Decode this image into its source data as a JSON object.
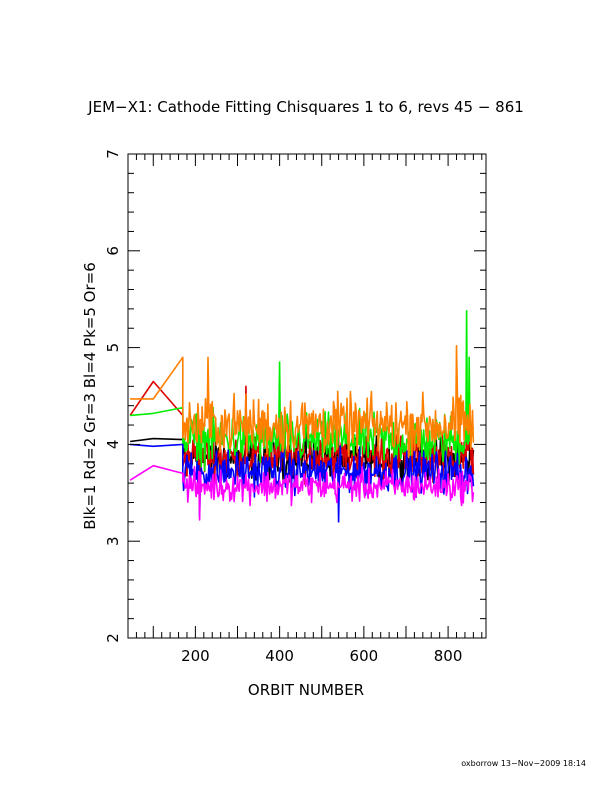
{
  "chart_data": {
    "type": "line",
    "title": "JEM−X1: Cathode Fitting Chisquares 1 to 6, revs 45 − 861",
    "xlabel": "ORBIT NUMBER",
    "ylabel": "Blk=1  Rd=2  Gr=3  Bl=4  Pk=5  Or=6",
    "xlim": [
      40,
      890
    ],
    "ylim": [
      2,
      7
    ],
    "x_ticks": [
      200,
      400,
      600,
      800
    ],
    "y_ticks": [
      2,
      3,
      4,
      5,
      6,
      7
    ],
    "grid": false,
    "legend": "none",
    "series": [
      {
        "color": "#000000",
        "x_start": [
          45,
          100,
          170
        ],
        "y_start": [
          4.03,
          4.06,
          4.05
        ],
        "x_range": [
          170,
          861
        ],
        "mean": 3.85,
        "noise": 0.13,
        "spikes": []
      },
      {
        "color": "#dd0000",
        "x_start": [
          45,
          100,
          170
        ],
        "y_start": [
          4.3,
          4.65,
          4.3
        ],
        "x_range": [
          170,
          861
        ],
        "mean": 3.88,
        "noise": 0.14,
        "spikes": [
          [
            320,
            4.6
          ]
        ]
      },
      {
        "color": "#00ee00",
        "x_start": [
          45,
          100,
          170
        ],
        "y_start": [
          4.3,
          4.32,
          4.38
        ],
        "x_range": [
          170,
          861
        ],
        "mean": 4.05,
        "noise": 0.16,
        "spikes": [
          [
            400,
            4.85
          ],
          [
            845,
            5.38
          ],
          [
            850,
            4.9
          ]
        ]
      },
      {
        "color": "#0000ff",
        "x_start": [
          45,
          100,
          170
        ],
        "y_start": [
          4.0,
          3.98,
          4.0
        ],
        "x_range": [
          170,
          861
        ],
        "mean": 3.72,
        "noise": 0.13,
        "spikes": [
          [
            540,
            3.2
          ],
          [
            210,
            3.25
          ]
        ]
      },
      {
        "color": "#ff00ff",
        "x_start": [
          45,
          100,
          170
        ],
        "y_start": [
          3.63,
          3.78,
          3.7
        ],
        "x_range": [
          170,
          861
        ],
        "mean": 3.57,
        "noise": 0.1,
        "spikes": [
          [
            210,
            3.22
          ]
        ]
      },
      {
        "color": "#ff8000",
        "x_start": [
          45,
          100,
          170
        ],
        "y_start": [
          4.47,
          4.47,
          4.9
        ],
        "x_range": [
          170,
          861
        ],
        "mean": 4.2,
        "noise": 0.18,
        "spikes": [
          [
            230,
            4.9
          ],
          [
            820,
            5.02
          ]
        ]
      }
    ]
  },
  "footer": "oxborrow 13−Nov−2009 18:14"
}
